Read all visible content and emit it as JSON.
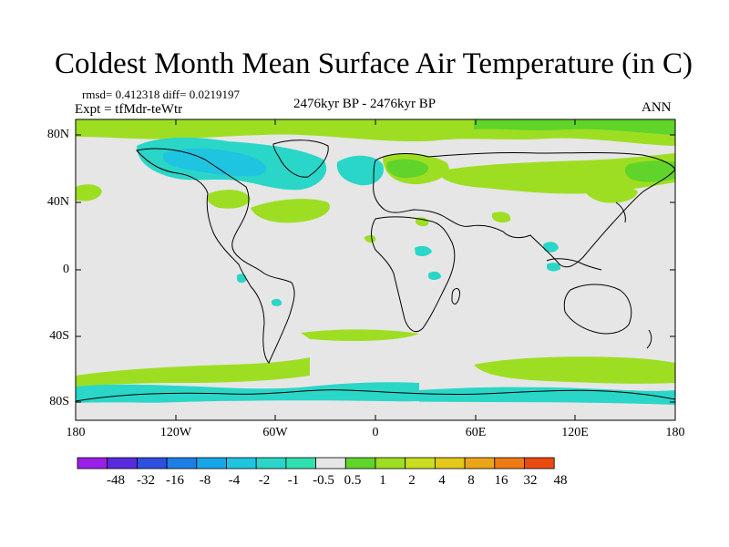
{
  "title": "Coldest Month Mean Surface Air Temperature (in C)",
  "stats": "rmsd= 0.412318 diff= 0.0219197",
  "experiment": "Expt = tfMdr-teWtr",
  "period": "2476kyr BP - 2476kyr BP",
  "season": "ANN",
  "y_axis_labels": [
    "80N",
    "40N",
    "0",
    "40S",
    "80S"
  ],
  "x_axis_labels": [
    "180",
    "120W",
    "60W",
    "0",
    "60E",
    "120E",
    "180"
  ],
  "colorbar": {
    "colors": [
      "#9a1fe6",
      "#5a2adf",
      "#2e4fe0",
      "#1d7ee8",
      "#16a6ea",
      "#1fc4e0",
      "#2ad6c8",
      "#31e0b0",
      "#e6e6e6",
      "#60d42a",
      "#9ede22",
      "#c8de1e",
      "#e4c81a",
      "#eca418",
      "#ee7a14",
      "#ea4a10"
    ],
    "labels": [
      "-48",
      "-32",
      "-16",
      "-8",
      "-4",
      "-2",
      "-1",
      "-0.5",
      "0.5",
      "1",
      "2",
      "4",
      "8",
      "16",
      "32",
      "48"
    ]
  },
  "colors": {
    "background": "#e6e6e6",
    "cool": "#2ad6c8",
    "cooler": "#1fc4e0",
    "warm": "#9ede22",
    "warmer": "#60d42a"
  }
}
